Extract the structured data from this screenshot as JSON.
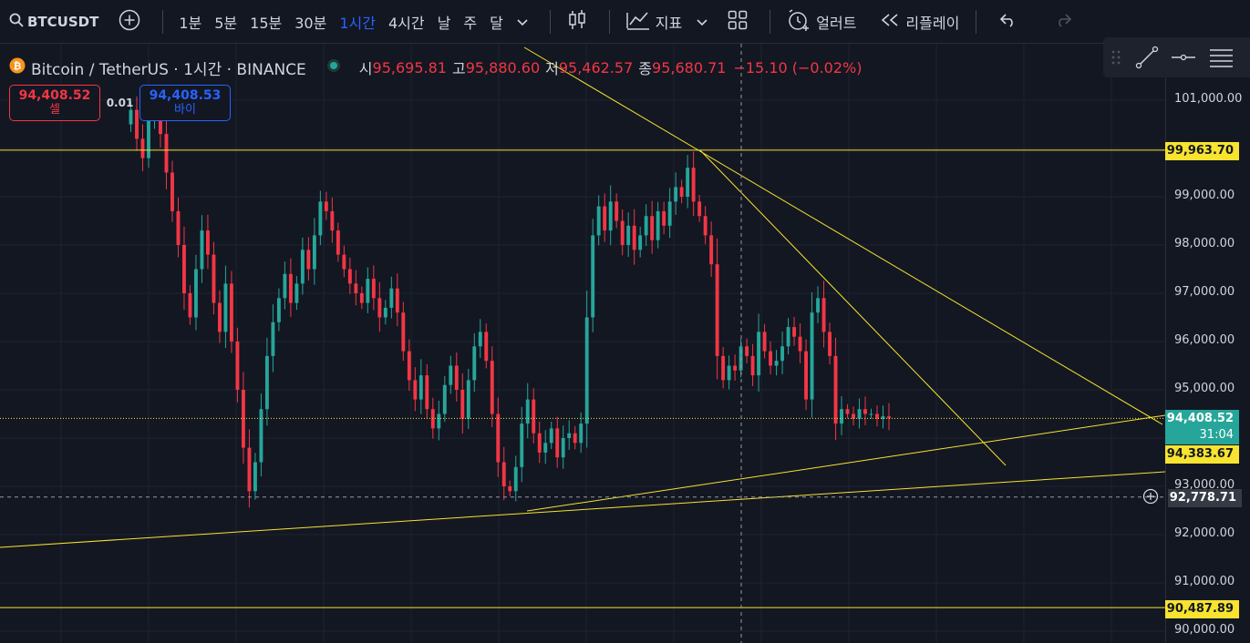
{
  "toolbar": {
    "symbol": "BTCUSDT",
    "intervals": [
      "1분",
      "5분",
      "15분",
      "30분",
      "1시간",
      "4시간",
      "날",
      "주",
      "달"
    ],
    "active_interval": "1시간",
    "indicators_label": "지표",
    "alert_label": "얼러트",
    "replay_label": "리플레이",
    "icons": [
      "search-icon",
      "add-symbol-icon",
      "chevron-down-icon",
      "candles-icon",
      "indicators-icon",
      "layouts-icon",
      "alert-clock-icon",
      "replay-icon",
      "undo-icon",
      "redo-icon"
    ]
  },
  "legend": {
    "title": "Bitcoin / TetherUS · 1시간 · BINANCE",
    "open_label": "시",
    "open": "95,695.81",
    "high_label": "고",
    "high": "95,880.60",
    "low_label": "저",
    "low": "95,462.57",
    "close_label": "종",
    "close": "95,680.71",
    "change": "−15.10 (−0.02%)"
  },
  "trade": {
    "sell_price": "94,408.52",
    "sell_label": "셀",
    "buy_price": "94,408.53",
    "buy_label": "바이",
    "spread": "0.01"
  },
  "price_axis": {
    "ticks": [
      "101,000.00",
      "99,000.00",
      "98,000.00",
      "97,000.00",
      "96,000.00",
      "95,000.00",
      "93,000.00",
      "92,000.00",
      "91,000.00",
      "90,000.00"
    ],
    "tag_resistance": "99,963.70",
    "tag_current": "94,408.52",
    "tag_countdown": "31:04",
    "tag_trendline": "94,383.67",
    "tag_crosshair": "92,778.71",
    "tag_support": "90,487.89"
  },
  "colors": {
    "background": "#131722",
    "up": "#26a69a",
    "down": "#f23645",
    "drawing": "#f7e330",
    "accent": "#2962ff"
  },
  "chart_data": {
    "type": "candlestick",
    "title": "Bitcoin / TetherUS · 1시간 · BINANCE",
    "ylim": [
      89950,
      101500
    ],
    "grid": true,
    "approx_closes": [
      100500,
      100800,
      100200,
      99800,
      100600,
      101000,
      100300,
      99500,
      98700,
      98000,
      97000,
      96500,
      97500,
      98300,
      97800,
      96800,
      96200,
      97200,
      96000,
      95000,
      93800,
      92900,
      93500,
      94600,
      95700,
      96400,
      96900,
      97400,
      96800,
      97200,
      97900,
      97500,
      98200,
      98900,
      98700,
      98300,
      97800,
      97500,
      97200,
      97000,
      96800,
      97300,
      96900,
      96500,
      96700,
      97100,
      96600,
      95800,
      95200,
      94800,
      95300,
      94600,
      94200,
      94500,
      95100,
      95500,
      95000,
      94400,
      95200,
      95900,
      96200,
      95600,
      94500,
      93500,
      93000,
      92900,
      93400,
      94300,
      94800,
      94100,
      93700,
      93900,
      94200,
      93600,
      94000,
      94100,
      93900,
      94300,
      96500,
      98200,
      98800,
      98300,
      98900,
      98500,
      98000,
      98400,
      97900,
      98200,
      98600,
      98100,
      98700,
      98400,
      98900,
      99200,
      99000,
      99600,
      98900,
      98600,
      98200,
      97600,
      95700,
      95200,
      95500,
      95400,
      95900,
      95700,
      95300,
      96200,
      95800,
      95500,
      95600,
      95900,
      96300,
      96100,
      95800,
      94800,
      96600,
      96900,
      96200,
      95700,
      94300,
      94600,
      94500,
      94400,
      94600,
      94500,
      94500,
      94400,
      94450,
      94410
    ],
    "horizontal_levels": [
      99963.7,
      94408.52,
      90487.89
    ],
    "trendline_value": 94383.67,
    "crosshair_price": 92778.71,
    "current_price": 94408.52
  }
}
